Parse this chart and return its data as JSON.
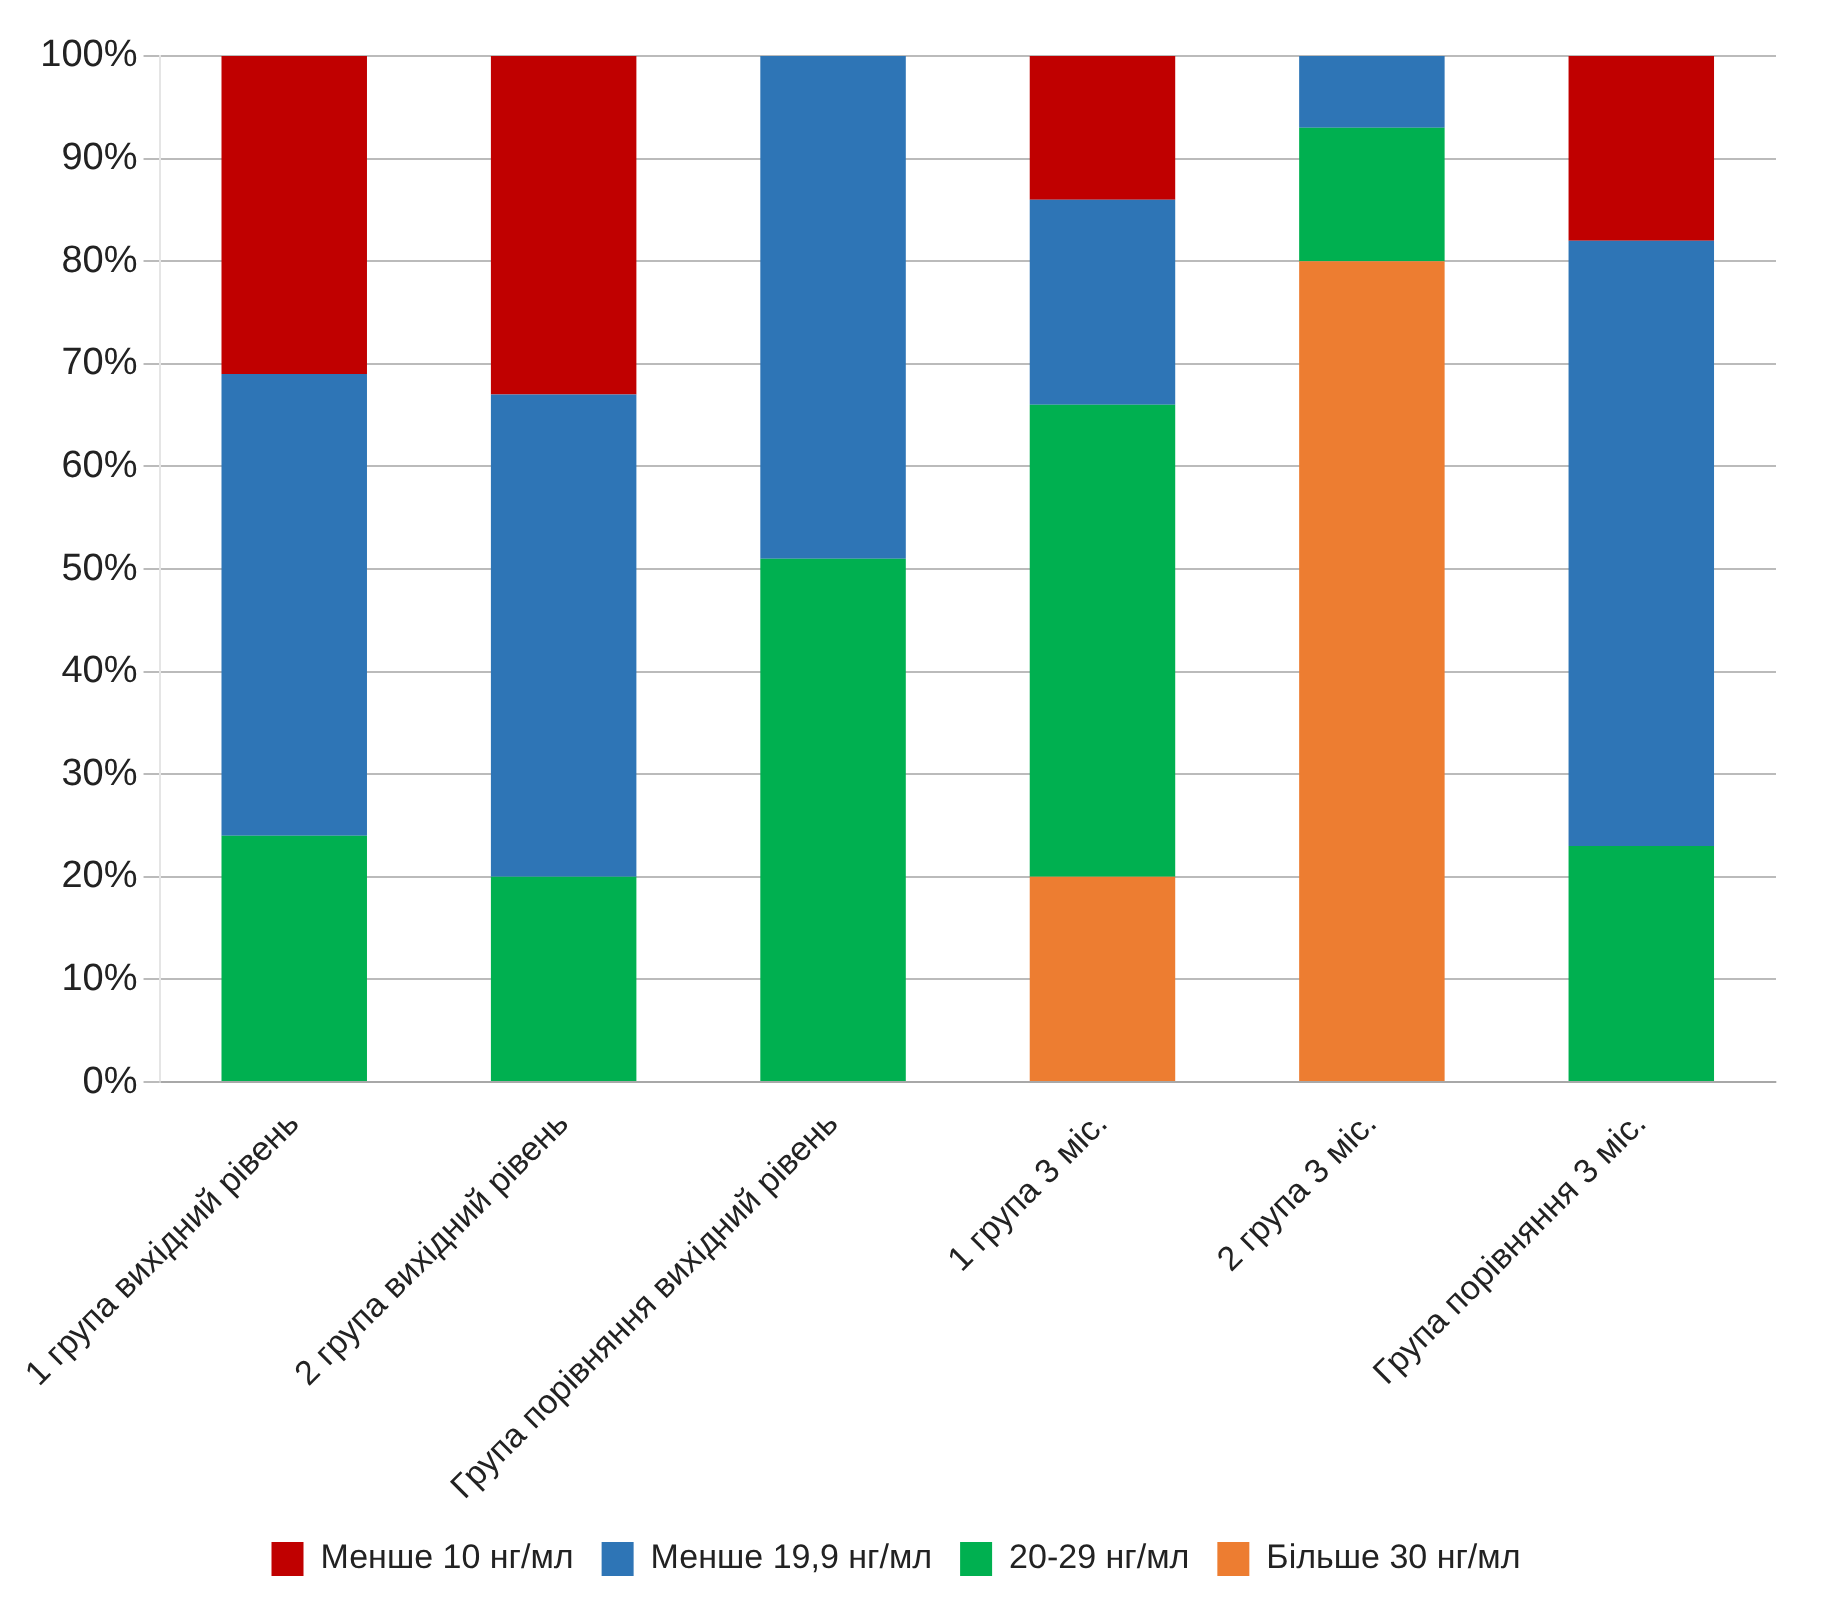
{
  "chart_data": {
    "type": "bar",
    "stacked": true,
    "categories": [
      "1 група вихідний рівень",
      "2 група вихідний рівень",
      "Група порівняння вихідний рівень",
      "1 група 3 міс.",
      "2 група 3 міс.",
      "Група порівняння 3 міс."
    ],
    "series": [
      {
        "name": "Більше 30 нг/мл",
        "color": "#ed7d31",
        "values": [
          0,
          0,
          0,
          20,
          80,
          0
        ]
      },
      {
        "name": "20-29 нг/мл",
        "color": "#00b050",
        "values": [
          24,
          20,
          51,
          46,
          13,
          23
        ]
      },
      {
        "name": "Менше 19,9 нг/мл",
        "color": "#2e75b6",
        "values": [
          45,
          47,
          49,
          20,
          7,
          59
        ]
      },
      {
        "name": "Менше 10 нг/мл",
        "color": "#c00000",
        "values": [
          31,
          33,
          0,
          14,
          0,
          18
        ]
      }
    ],
    "ylim": [
      0,
      100
    ],
    "yticks": [
      {
        "value": 0,
        "label": "0%"
      },
      {
        "value": 10,
        "label": "10%"
      },
      {
        "value": 20,
        "label": "20%"
      },
      {
        "value": 30,
        "label": "30%"
      },
      {
        "value": 40,
        "label": "40%"
      },
      {
        "value": 50,
        "label": "50%"
      },
      {
        "value": 60,
        "label": "60%"
      },
      {
        "value": 70,
        "label": "70%"
      },
      {
        "value": 80,
        "label": "80%"
      },
      {
        "value": 90,
        "label": "90%"
      },
      {
        "value": 100,
        "label": "100%"
      }
    ],
    "grid": "y",
    "legend": "bottom"
  }
}
